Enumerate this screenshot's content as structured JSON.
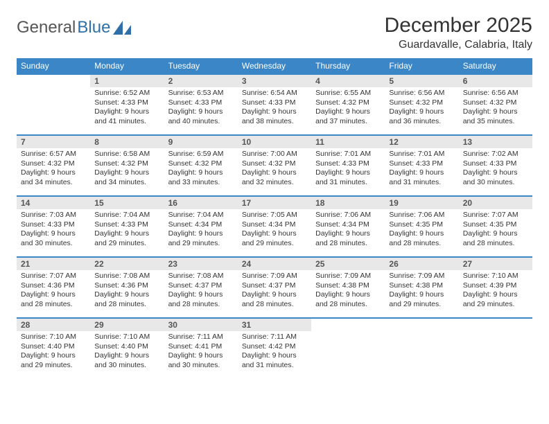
{
  "logo": {
    "text1": "General",
    "text2": "Blue"
  },
  "title": "December 2025",
  "location": "Guardavalle, Calabria, Italy",
  "colors": {
    "header_bg": "#3b86c6",
    "header_text": "#ffffff",
    "daynum_bg": "#e8e8e8",
    "border": "#3b86c6",
    "text": "#333333",
    "logo_gray": "#555555",
    "logo_blue": "#2f6fa8"
  },
  "daysOfWeek": [
    "Sunday",
    "Monday",
    "Tuesday",
    "Wednesday",
    "Thursday",
    "Friday",
    "Saturday"
  ],
  "weeks": [
    [
      {
        "n": "",
        "sr": "",
        "ss": "",
        "dl": ""
      },
      {
        "n": "1",
        "sr": "Sunrise: 6:52 AM",
        "ss": "Sunset: 4:33 PM",
        "dl": "Daylight: 9 hours and 41 minutes."
      },
      {
        "n": "2",
        "sr": "Sunrise: 6:53 AM",
        "ss": "Sunset: 4:33 PM",
        "dl": "Daylight: 9 hours and 40 minutes."
      },
      {
        "n": "3",
        "sr": "Sunrise: 6:54 AM",
        "ss": "Sunset: 4:33 PM",
        "dl": "Daylight: 9 hours and 38 minutes."
      },
      {
        "n": "4",
        "sr": "Sunrise: 6:55 AM",
        "ss": "Sunset: 4:32 PM",
        "dl": "Daylight: 9 hours and 37 minutes."
      },
      {
        "n": "5",
        "sr": "Sunrise: 6:56 AM",
        "ss": "Sunset: 4:32 PM",
        "dl": "Daylight: 9 hours and 36 minutes."
      },
      {
        "n": "6",
        "sr": "Sunrise: 6:56 AM",
        "ss": "Sunset: 4:32 PM",
        "dl": "Daylight: 9 hours and 35 minutes."
      }
    ],
    [
      {
        "n": "7",
        "sr": "Sunrise: 6:57 AM",
        "ss": "Sunset: 4:32 PM",
        "dl": "Daylight: 9 hours and 34 minutes."
      },
      {
        "n": "8",
        "sr": "Sunrise: 6:58 AM",
        "ss": "Sunset: 4:32 PM",
        "dl": "Daylight: 9 hours and 34 minutes."
      },
      {
        "n": "9",
        "sr": "Sunrise: 6:59 AM",
        "ss": "Sunset: 4:32 PM",
        "dl": "Daylight: 9 hours and 33 minutes."
      },
      {
        "n": "10",
        "sr": "Sunrise: 7:00 AM",
        "ss": "Sunset: 4:32 PM",
        "dl": "Daylight: 9 hours and 32 minutes."
      },
      {
        "n": "11",
        "sr": "Sunrise: 7:01 AM",
        "ss": "Sunset: 4:33 PM",
        "dl": "Daylight: 9 hours and 31 minutes."
      },
      {
        "n": "12",
        "sr": "Sunrise: 7:01 AM",
        "ss": "Sunset: 4:33 PM",
        "dl": "Daylight: 9 hours and 31 minutes."
      },
      {
        "n": "13",
        "sr": "Sunrise: 7:02 AM",
        "ss": "Sunset: 4:33 PM",
        "dl": "Daylight: 9 hours and 30 minutes."
      }
    ],
    [
      {
        "n": "14",
        "sr": "Sunrise: 7:03 AM",
        "ss": "Sunset: 4:33 PM",
        "dl": "Daylight: 9 hours and 30 minutes."
      },
      {
        "n": "15",
        "sr": "Sunrise: 7:04 AM",
        "ss": "Sunset: 4:33 PM",
        "dl": "Daylight: 9 hours and 29 minutes."
      },
      {
        "n": "16",
        "sr": "Sunrise: 7:04 AM",
        "ss": "Sunset: 4:34 PM",
        "dl": "Daylight: 9 hours and 29 minutes."
      },
      {
        "n": "17",
        "sr": "Sunrise: 7:05 AM",
        "ss": "Sunset: 4:34 PM",
        "dl": "Daylight: 9 hours and 29 minutes."
      },
      {
        "n": "18",
        "sr": "Sunrise: 7:06 AM",
        "ss": "Sunset: 4:34 PM",
        "dl": "Daylight: 9 hours and 28 minutes."
      },
      {
        "n": "19",
        "sr": "Sunrise: 7:06 AM",
        "ss": "Sunset: 4:35 PM",
        "dl": "Daylight: 9 hours and 28 minutes."
      },
      {
        "n": "20",
        "sr": "Sunrise: 7:07 AM",
        "ss": "Sunset: 4:35 PM",
        "dl": "Daylight: 9 hours and 28 minutes."
      }
    ],
    [
      {
        "n": "21",
        "sr": "Sunrise: 7:07 AM",
        "ss": "Sunset: 4:36 PM",
        "dl": "Daylight: 9 hours and 28 minutes."
      },
      {
        "n": "22",
        "sr": "Sunrise: 7:08 AM",
        "ss": "Sunset: 4:36 PM",
        "dl": "Daylight: 9 hours and 28 minutes."
      },
      {
        "n": "23",
        "sr": "Sunrise: 7:08 AM",
        "ss": "Sunset: 4:37 PM",
        "dl": "Daylight: 9 hours and 28 minutes."
      },
      {
        "n": "24",
        "sr": "Sunrise: 7:09 AM",
        "ss": "Sunset: 4:37 PM",
        "dl": "Daylight: 9 hours and 28 minutes."
      },
      {
        "n": "25",
        "sr": "Sunrise: 7:09 AM",
        "ss": "Sunset: 4:38 PM",
        "dl": "Daylight: 9 hours and 28 minutes."
      },
      {
        "n": "26",
        "sr": "Sunrise: 7:09 AM",
        "ss": "Sunset: 4:38 PM",
        "dl": "Daylight: 9 hours and 29 minutes."
      },
      {
        "n": "27",
        "sr": "Sunrise: 7:10 AM",
        "ss": "Sunset: 4:39 PM",
        "dl": "Daylight: 9 hours and 29 minutes."
      }
    ],
    [
      {
        "n": "28",
        "sr": "Sunrise: 7:10 AM",
        "ss": "Sunset: 4:40 PM",
        "dl": "Daylight: 9 hours and 29 minutes."
      },
      {
        "n": "29",
        "sr": "Sunrise: 7:10 AM",
        "ss": "Sunset: 4:40 PM",
        "dl": "Daylight: 9 hours and 30 minutes."
      },
      {
        "n": "30",
        "sr": "Sunrise: 7:11 AM",
        "ss": "Sunset: 4:41 PM",
        "dl": "Daylight: 9 hours and 30 minutes."
      },
      {
        "n": "31",
        "sr": "Sunrise: 7:11 AM",
        "ss": "Sunset: 4:42 PM",
        "dl": "Daylight: 9 hours and 31 minutes."
      },
      {
        "n": "",
        "sr": "",
        "ss": "",
        "dl": ""
      },
      {
        "n": "",
        "sr": "",
        "ss": "",
        "dl": ""
      },
      {
        "n": "",
        "sr": "",
        "ss": "",
        "dl": ""
      }
    ]
  ]
}
